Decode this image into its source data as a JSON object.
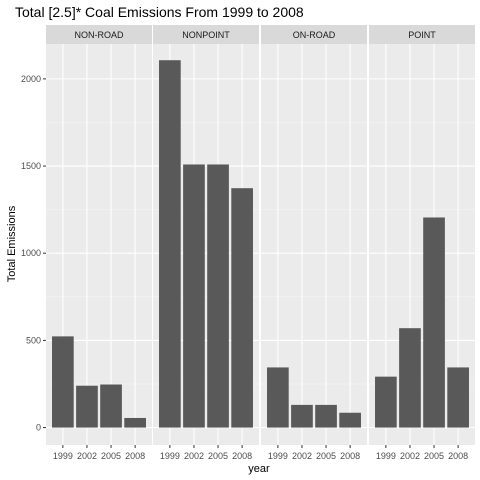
{
  "chart_data": {
    "type": "bar",
    "title": "Total [2.5]* Coal Emissions From 1999 to 2008",
    "xlabel": "year",
    "ylabel": "Total Emissions",
    "categories": [
      "1999",
      "2002",
      "2005",
      "2008"
    ],
    "ylim": [
      -100,
      2200
    ],
    "yticks": [
      0,
      500,
      1000,
      1500,
      2000
    ],
    "grid": true,
    "bar_color": "#595959",
    "panel_bg": "#ebebeb",
    "strip_bg": "#d9d9d9",
    "facets": [
      {
        "name": "NON-ROAD",
        "values": [
          523,
          240,
          247,
          55
        ]
      },
      {
        "name": "NONPOINT",
        "values": [
          2107,
          1509,
          1509,
          1373
        ]
      },
      {
        "name": "ON-ROAD",
        "values": [
          345,
          130,
          130,
          85
        ]
      },
      {
        "name": "POINT",
        "values": [
          292,
          570,
          1205,
          345
        ]
      }
    ]
  }
}
